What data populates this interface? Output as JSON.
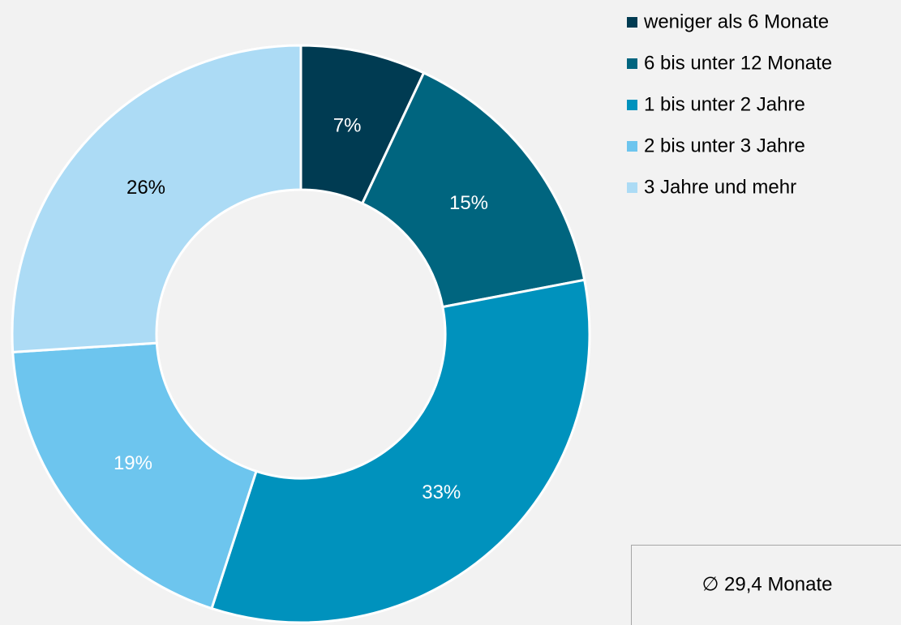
{
  "chart_data": {
    "type": "donut",
    "categories": [
      "weniger als 6 Monate",
      "6 bis unter 12 Monate",
      "1 bis unter 2 Jahre",
      "2 bis unter 3 Jahre",
      "3 Jahre und mehr"
    ],
    "values": [
      7,
      15,
      33,
      19,
      26
    ],
    "value_labels": [
      "7%",
      "15%",
      "33%",
      "19%",
      "26%"
    ],
    "colors": [
      "#003b52",
      "#00657f",
      "#0092bd",
      "#6dc5ee",
      "#acdbf5"
    ],
    "label_colors": [
      "#ffffff",
      "#ffffff",
      "#ffffff",
      "#ffffff",
      "#000000"
    ],
    "legend": "top-right",
    "annotation": "∅ 29,4 Monate"
  }
}
